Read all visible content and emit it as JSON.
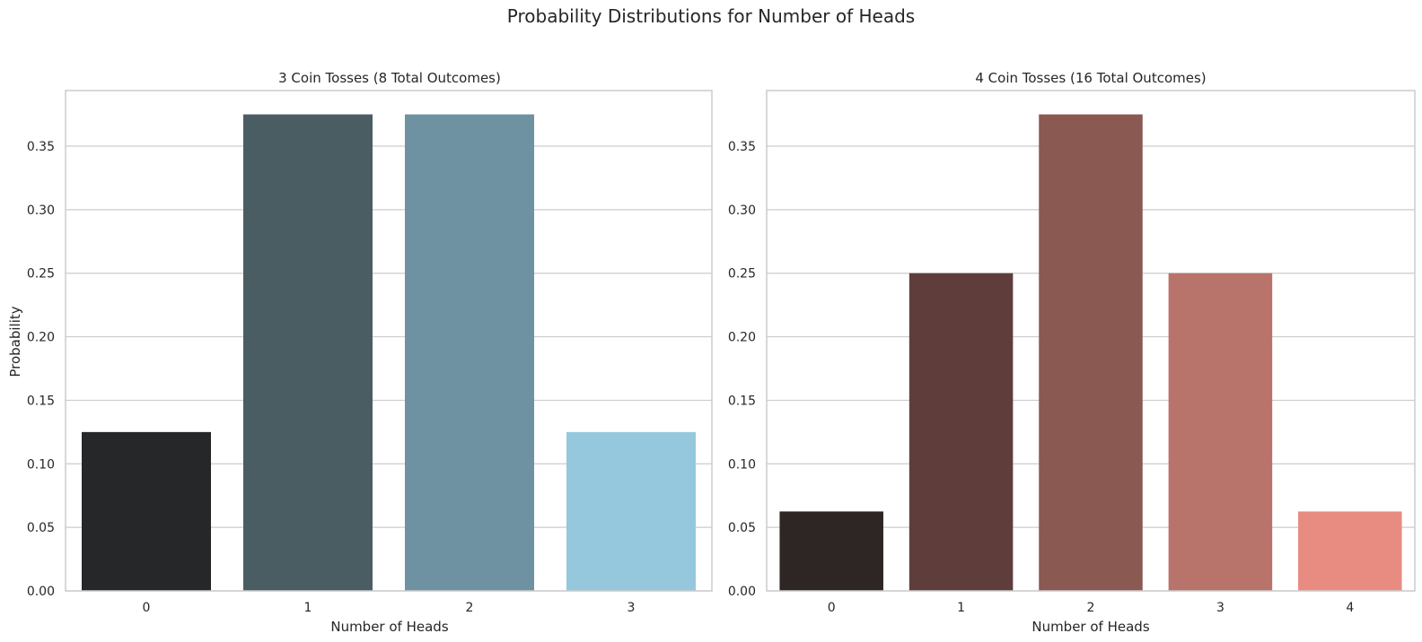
{
  "figure": {
    "suptitle": "Probability Distributions for Number of Heads"
  },
  "chart_data": [
    {
      "type": "bar",
      "title": "3 Coin Tosses (8 Total Outcomes)",
      "xlabel": "Number of Heads",
      "ylabel": "Probability",
      "categories": [
        "0",
        "1",
        "2",
        "3"
      ],
      "values": [
        0.125,
        0.375,
        0.375,
        0.125
      ],
      "colors": [
        "#262729",
        "#4a5d63",
        "#6e92a1",
        "#95c8dd"
      ],
      "ylim": [
        0,
        0.39375
      ],
      "yticks": [
        0.0,
        0.05,
        0.1,
        0.15,
        0.2,
        0.25,
        0.3,
        0.35
      ],
      "ytick_labels": [
        "0.00",
        "0.05",
        "0.10",
        "0.15",
        "0.20",
        "0.25",
        "0.30",
        "0.35"
      ],
      "grid": true
    },
    {
      "type": "bar",
      "title": "4 Coin Tosses (16 Total Outcomes)",
      "xlabel": "Number of Heads",
      "ylabel": "",
      "categories": [
        "0",
        "1",
        "2",
        "3",
        "4"
      ],
      "values": [
        0.0625,
        0.25,
        0.375,
        0.25,
        0.0625
      ],
      "colors": [
        "#2e2624",
        "#5e3d3b",
        "#8a5952",
        "#b8736a",
        "#e88c82"
      ],
      "ylim": [
        0,
        0.39375
      ],
      "yticks": [
        0.0,
        0.05,
        0.1,
        0.15,
        0.2,
        0.25,
        0.3,
        0.35
      ],
      "ytick_labels": [
        "0.00",
        "0.05",
        "0.10",
        "0.15",
        "0.20",
        "0.25",
        "0.30",
        "0.35"
      ],
      "grid": true
    }
  ]
}
